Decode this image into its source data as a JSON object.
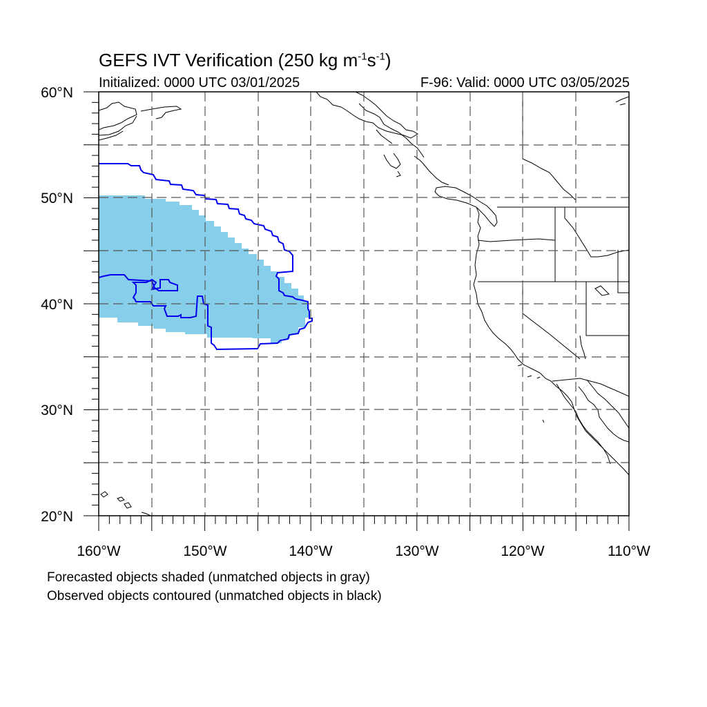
{
  "title": {
    "prefix": "GEFS IVT Verification (250 kg m",
    "sup1": "-1",
    "mid": "s",
    "sup2": "-1",
    "suffix": ")"
  },
  "initialized": "Initialized: 0000 UTC 03/01/2025",
  "valid": "F-96: Valid: 0000 UTC 03/05/2025",
  "captions": {
    "forecast": "Forecasted objects shaded (unmatched objects in gray)",
    "observed": "Observed objects contoured (unmatched objects in black)"
  },
  "axes": {
    "lon_labels": [
      "160°W",
      "150°W",
      "140°W",
      "130°W",
      "120°W",
      "110°W"
    ],
    "lat_labels": [
      "60°N",
      "50°N",
      "40°N",
      "30°N",
      "20°N"
    ]
  },
  "colors": {
    "forecast_fill": "#87ceeb",
    "observed_contour": "#0000ee",
    "coastline": "#000000"
  }
}
